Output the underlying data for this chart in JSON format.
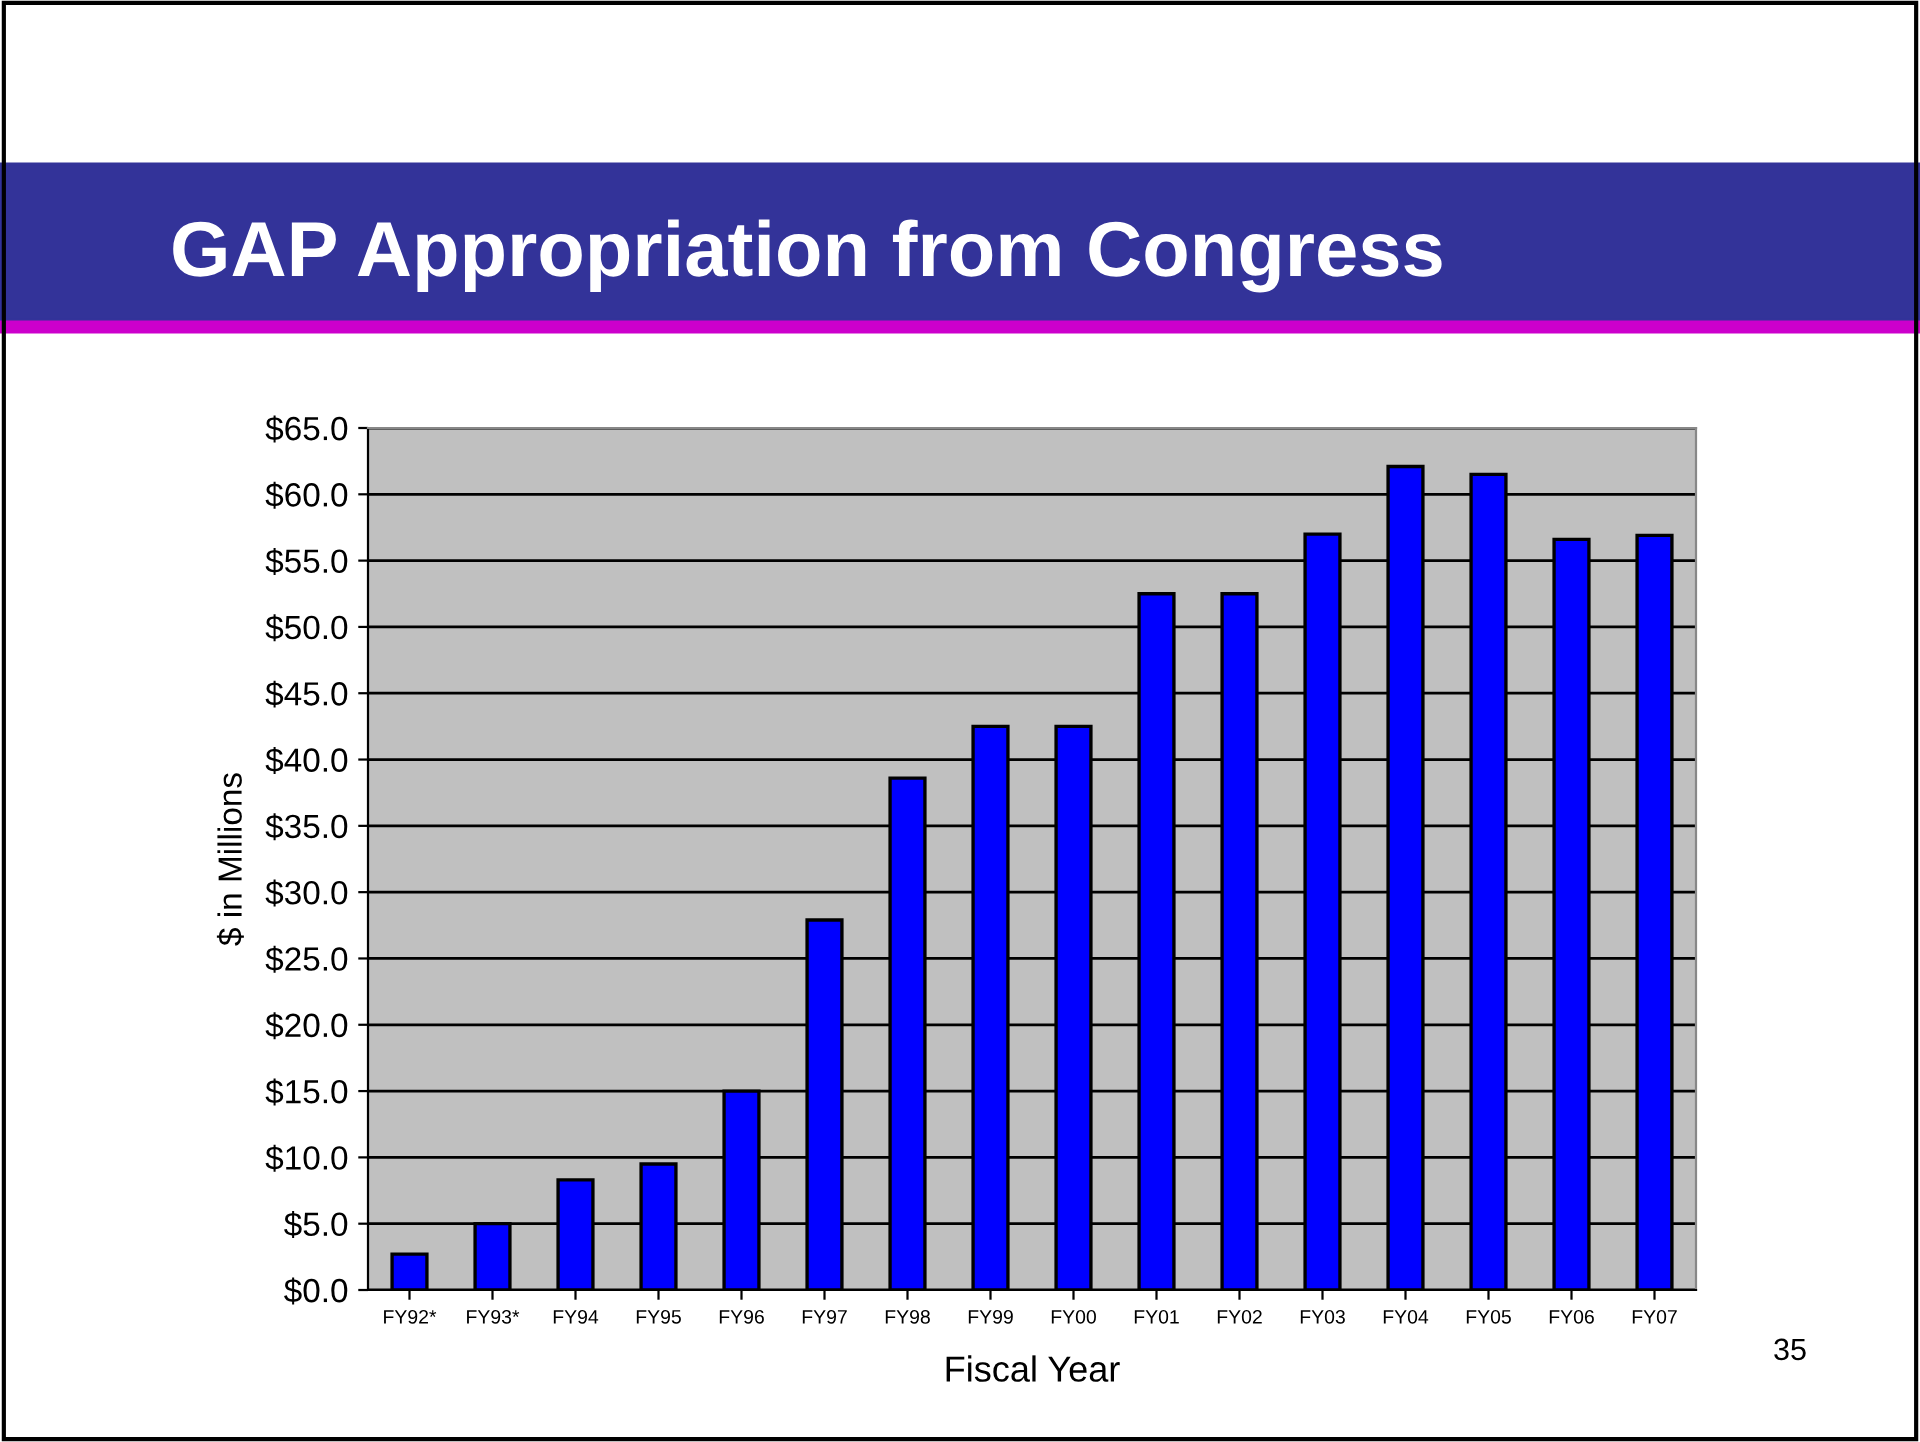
{
  "chart_data": {
    "type": "bar",
    "title": "GAP Appropriation from Congress",
    "xlabel": "Fiscal Year",
    "ylabel": "$ in Millions",
    "categories": [
      "FY92*",
      "FY93*",
      "FY94",
      "FY95",
      "FY96",
      "FY97",
      "FY98",
      "FY99",
      "FY00",
      "FY01",
      "FY02",
      "FY03",
      "FY04",
      "FY05",
      "FY06",
      "FY07"
    ],
    "values": [
      2.7,
      5.0,
      8.3,
      9.5,
      15.0,
      27.9,
      38.6,
      42.5,
      42.5,
      52.5,
      52.5,
      57.0,
      62.1,
      61.5,
      56.6,
      56.9
    ],
    "color": "#0000ff",
    "ylim": [
      0,
      65
    ],
    "yticks": [
      {
        "value": 0,
        "label": "$0.0"
      },
      {
        "value": 5,
        "label": "$5.0"
      },
      {
        "value": 10,
        "label": "$10.0"
      },
      {
        "value": 15,
        "label": "$15.0"
      },
      {
        "value": 20,
        "label": "$20.0"
      },
      {
        "value": 25,
        "label": "$25.0"
      },
      {
        "value": 30,
        "label": "$30.0"
      },
      {
        "value": 35,
        "label": "$35.0"
      },
      {
        "value": 40,
        "label": "$40.0"
      },
      {
        "value": 45,
        "label": "$45.0"
      },
      {
        "value": 50,
        "label": "$50.0"
      },
      {
        "value": 55,
        "label": "$55.0"
      },
      {
        "value": 60,
        "label": "$60.0"
      },
      {
        "value": 65,
        "label": "$65.0"
      }
    ],
    "grid": "y",
    "annotations": [
      "35"
    ]
  }
}
